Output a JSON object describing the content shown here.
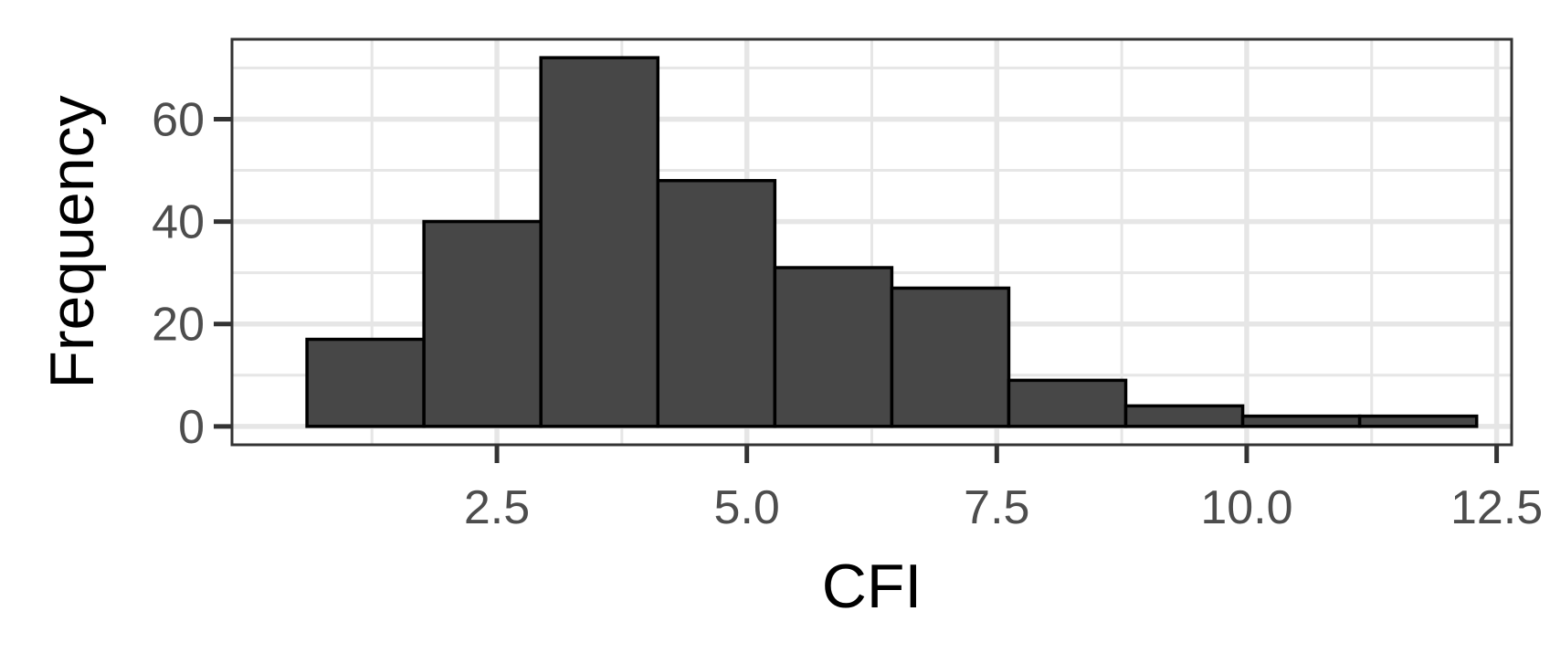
{
  "chart_data": {
    "type": "bar",
    "subtype": "histogram",
    "xlabel": "CFI",
    "ylabel": "Frequency",
    "xlim": [
      -0.15,
      12.65
    ],
    "ylim": [
      -3.6,
      75.6
    ],
    "x_ticks": [
      2.5,
      5.0,
      7.5,
      10.0,
      12.5
    ],
    "x_tick_labels": [
      "2.5",
      "5.0",
      "7.5",
      "10.0",
      "12.5"
    ],
    "y_ticks": [
      0,
      20,
      40,
      60
    ],
    "y_tick_labels": [
      "0",
      "20",
      "40",
      "60"
    ],
    "bins": [
      {
        "x0": 0.6,
        "x1": 1.77,
        "count": 17
      },
      {
        "x0": 1.77,
        "x1": 2.94,
        "count": 40
      },
      {
        "x0": 2.94,
        "x1": 4.11,
        "count": 72
      },
      {
        "x0": 4.11,
        "x1": 5.28,
        "count": 48
      },
      {
        "x0": 5.28,
        "x1": 6.45,
        "count": 31
      },
      {
        "x0": 6.45,
        "x1": 7.62,
        "count": 27
      },
      {
        "x0": 7.62,
        "x1": 8.79,
        "count": 9
      },
      {
        "x0": 8.79,
        "x1": 9.96,
        "count": 4
      },
      {
        "x0": 9.96,
        "x1": 11.13,
        "count": 2
      },
      {
        "x0": 11.13,
        "x1": 12.3,
        "count": 2
      }
    ],
    "bar_fill": "#474747",
    "bar_stroke": "#000000",
    "panel_background": "#ffffff",
    "grid_color": "#e6e6e6",
    "grid": true,
    "legend": "none"
  }
}
